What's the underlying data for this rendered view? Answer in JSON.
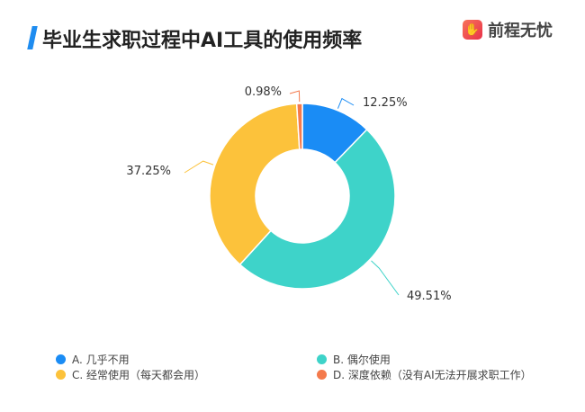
{
  "title": "毕业生求职过程中AI工具的使用频率",
  "logo": {
    "text": "前程无忧",
    "icon": "hand-icon"
  },
  "chart_data": {
    "type": "pie",
    "variant": "donut",
    "title": "毕业生求职过程中AI工具的使用频率",
    "categories": [
      "A. 几乎不用",
      "B. 偶尔使用",
      "C. 经常使用（每天都会用）",
      "D. 深度依赖（没有AI无法开展求职工作）"
    ],
    "values": [
      12.25,
      49.51,
      37.25,
      0.98
    ],
    "labels": [
      "12.25%",
      "49.51%",
      "37.25%",
      "0.98%"
    ],
    "colors": [
      "#1a8cf5",
      "#3ed3c9",
      "#fcc23b",
      "#f47a4c"
    ],
    "legend_position": "bottom"
  }
}
